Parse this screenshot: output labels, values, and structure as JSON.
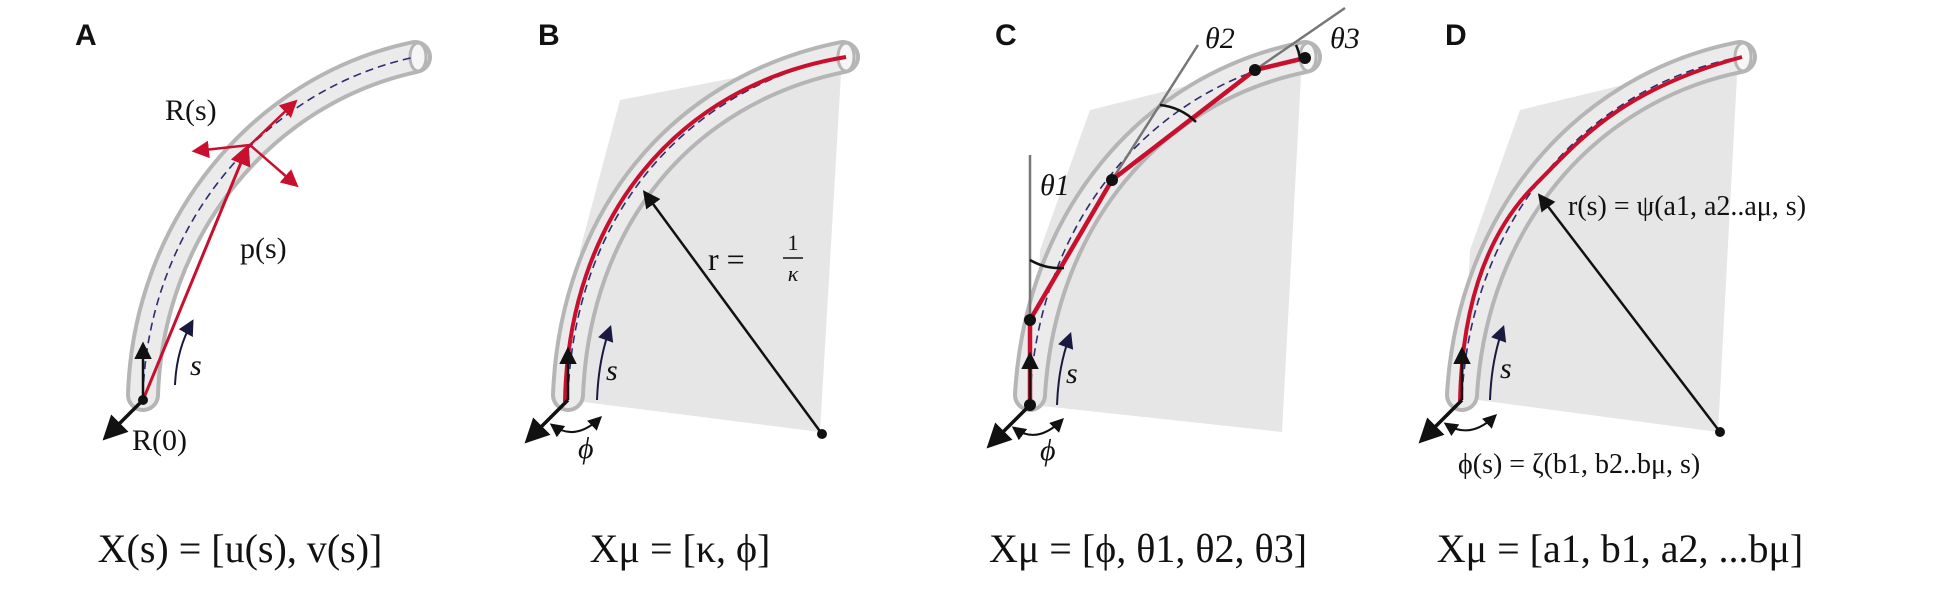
{
  "panels": [
    {
      "id": "A",
      "label": "A",
      "annotations": {
        "frame": "R(s)",
        "position": "p(s)",
        "arc": "s",
        "origin": "R(0)"
      },
      "equation": "X(s) = [u(s), v(s)]"
    },
    {
      "id": "B",
      "label": "B",
      "annotations": {
        "radius_lhs": "r =",
        "radius_num": "1",
        "radius_den": "κ",
        "arc": "s",
        "twist": "ϕ"
      },
      "equation": "Xμ = [κ, ϕ]"
    },
    {
      "id": "C",
      "label": "C",
      "annotations": {
        "theta1": "θ1",
        "theta2": "θ2",
        "theta3": "θ3",
        "arc": "s",
        "twist": "ϕ"
      },
      "equation": "Xμ = [ϕ, θ1, θ2, θ3]"
    },
    {
      "id": "D",
      "label": "D",
      "annotations": {
        "radius_fn": "r(s) = ψ(a1, a2..aμ, s)",
        "arc": "s",
        "twist_fn": "ϕ(s) = ζ(b1, b2..bμ, s)"
      },
      "equation": "Xμ = [a1, b1, a2, ...bμ]"
    }
  ],
  "colors": {
    "rod_outline": "#b5b5b5",
    "rod_fill": "#ebebeb",
    "centerline": "#2c2c6e",
    "curve": "#c8102e",
    "sector": "#e6e6e6",
    "ink": "#111111",
    "theta_line": "#777777"
  }
}
